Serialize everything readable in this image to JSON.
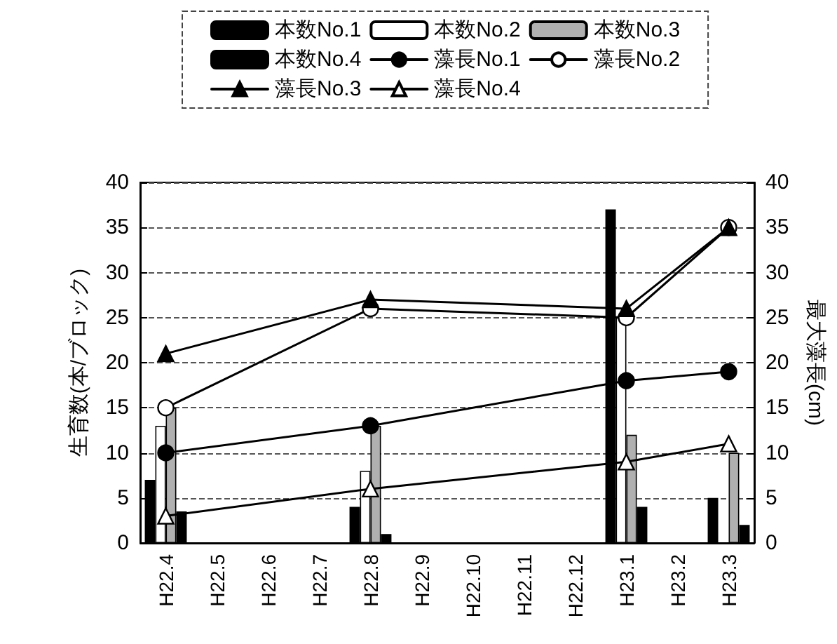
{
  "chart_data": {
    "type": "bar",
    "ylabel": "生育数(本/ブロック)",
    "y2label": "最大藻長(cm)",
    "categories": [
      "H22.4",
      "H22.5",
      "H22.6",
      "H22.7",
      "H22.8",
      "H22.9",
      "H22.10",
      "H22.11",
      "H22.12",
      "H23.1",
      "H23.2",
      "H23.3"
    ],
    "series": [
      {
        "name": "本数No.1",
        "color": "#000000",
        "values": [
          7,
          null,
          null,
          null,
          4,
          null,
          null,
          null,
          null,
          37,
          null,
          5
        ]
      },
      {
        "name": "本数No.2",
        "color": "#ffffff",
        "values": [
          13,
          null,
          null,
          null,
          8,
          null,
          null,
          null,
          null,
          25,
          null,
          null
        ]
      },
      {
        "name": "本数No.3",
        "color": "#b0b0b0",
        "values": [
          15,
          null,
          null,
          null,
          13,
          null,
          null,
          null,
          null,
          12,
          null,
          10
        ]
      },
      {
        "name": "本数No.4",
        "color": "#000000",
        "values": [
          3.5,
          null,
          null,
          null,
          1,
          null,
          null,
          null,
          null,
          4,
          null,
          2
        ]
      },
      {
        "name": "藻長No.1",
        "type": "line",
        "marker": "circle",
        "color": "#000000",
        "values": [
          10,
          null,
          null,
          null,
          13,
          null,
          null,
          null,
          null,
          18,
          null,
          19
        ]
      },
      {
        "name": "藻長No.2",
        "type": "line",
        "marker": "circle",
        "color": "#ffffff",
        "values": [
          15,
          null,
          null,
          null,
          26,
          null,
          null,
          null,
          null,
          25,
          null,
          35
        ]
      },
      {
        "name": "藻長No.3",
        "type": "line",
        "marker": "triangle",
        "color": "#000000",
        "values": [
          21,
          null,
          null,
          null,
          27,
          null,
          null,
          null,
          null,
          26,
          null,
          35
        ]
      },
      {
        "name": "藻長No.4",
        "type": "line",
        "marker": "triangle",
        "color": "#ffffff",
        "values": [
          3,
          null,
          null,
          null,
          6,
          null,
          null,
          null,
          null,
          9,
          null,
          11
        ]
      }
    ],
    "ylim": [
      0,
      40
    ],
    "yticks": [
      0,
      5,
      10,
      15,
      20,
      25,
      30,
      35,
      40
    ],
    "y2lim": [
      0,
      40
    ],
    "y2ticks": [
      0,
      5,
      10,
      15,
      20,
      25,
      30,
      35,
      40
    ],
    "grid": "y",
    "legend": "top",
    "line_style": "solid"
  }
}
